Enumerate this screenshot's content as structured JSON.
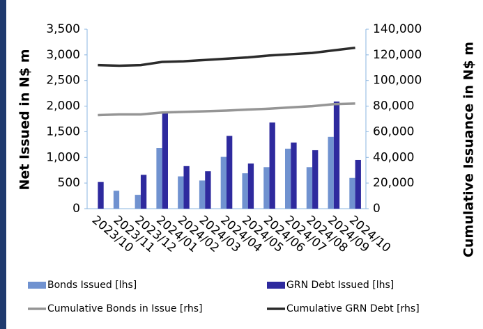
{
  "chart_data": {
    "type": "bar",
    "categories": [
      "2023/10",
      "2023/11",
      "2023/12",
      "2024/01",
      "2024/02",
      "2024/03",
      "2024/04",
      "2024/05",
      "2024/06",
      "2024/07",
      "2024/08",
      "2024/09",
      "2024/10"
    ],
    "y_label": "Net Issued in N$ m",
    "y2_label": "Cumulative Issuance in N$ m",
    "ylim": [
      0,
      3500
    ],
    "yticks": [
      0,
      {
        "value": 500,
        "label": "500"
      },
      {
        "value": 1000,
        "label": "1,000"
      },
      {
        "value": 1500,
        "label": "1,500"
      },
      {
        "value": 2000,
        "label": "2,000"
      },
      {
        "value": 2500,
        "label": "2,500"
      },
      {
        "value": 3000,
        "label": "3,000"
      },
      {
        "value": 3500,
        "label": "3,500"
      }
    ],
    "y2lim": [
      0,
      140000
    ],
    "y2ticks": [
      0,
      {
        "value": 20000,
        "label": "20,000"
      },
      {
        "value": 40000,
        "label": "40,000"
      },
      {
        "value": 60000,
        "label": "60,000"
      },
      {
        "value": 80000,
        "label": "80,000"
      },
      {
        "value": 100000,
        "label": "100,000"
      },
      {
        "value": 120000,
        "label": "120,000"
      },
      {
        "value": 140000,
        "label": "140,000"
      }
    ],
    "series": [
      {
        "name": "Bonds Issued [lhs]",
        "type": "bar",
        "color": "#7092d0",
        "values": [
          0,
          350,
          270,
          1180,
          630,
          550,
          1010,
          690,
          810,
          1170,
          810,
          1400,
          600
        ]
      },
      {
        "name": "GRN Debt Issued [lhs]",
        "type": "bar",
        "color": "#2e2a9e",
        "values": [
          520,
          0,
          660,
          1860,
          830,
          730,
          1420,
          880,
          1680,
          1290,
          1140,
          2090,
          950
        ]
      },
      {
        "name": "Cumulative Bonds in Issue [rhs]",
        "type": "line",
        "axis": "y2",
        "color": "#959595",
        "values": [
          73000,
          73500,
          73500,
          75000,
          75500,
          76000,
          76500,
          77300,
          78000,
          79000,
          80000,
          81500,
          82000
        ]
      },
      {
        "name": "Cumulative GRN Debt [rhs]",
        "type": "line",
        "axis": "y2",
        "color": "#2b2b2b",
        "values": [
          112000,
          111500,
          112000,
          114500,
          115000,
          116000,
          117000,
          118000,
          119500,
          120500,
          121500,
          123500,
          125500
        ]
      }
    ]
  }
}
